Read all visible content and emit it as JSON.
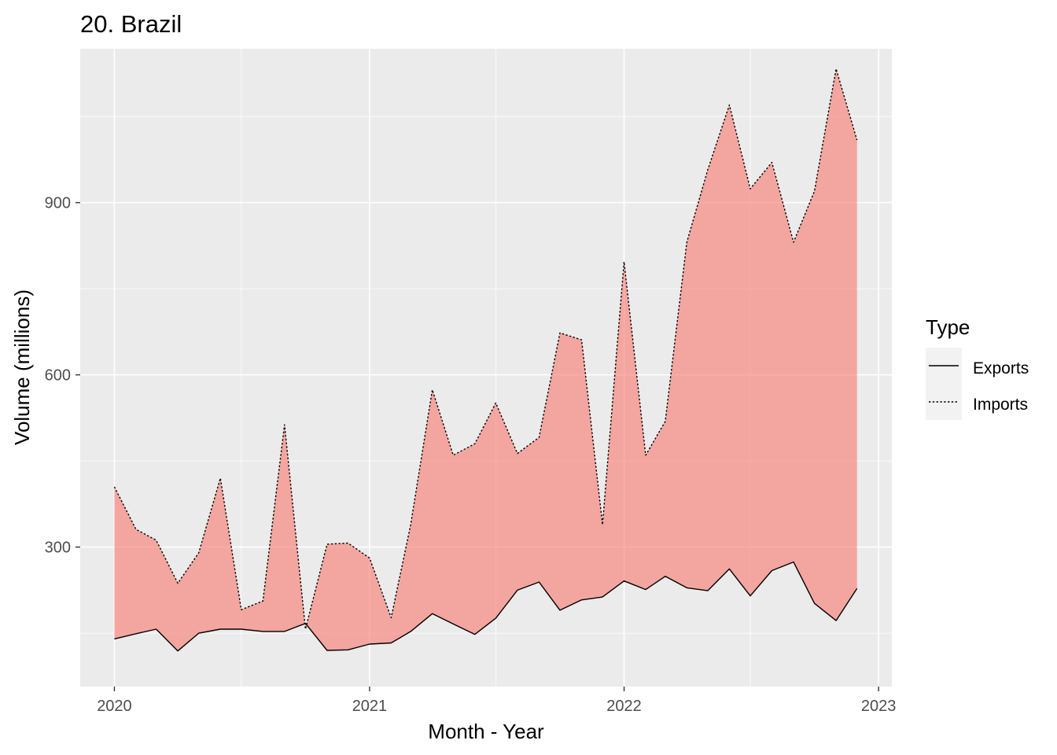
{
  "chart_data": {
    "type": "area",
    "title": "20. Brazil",
    "xlabel": "Month - Year",
    "ylabel": "Volume (millions)",
    "x_ticks": [
      "2020",
      "2021",
      "2022",
      "2023"
    ],
    "y_ticks": [
      300,
      600,
      900
    ],
    "xlim": [
      "2019-11-13",
      "2023-01-20"
    ],
    "ylim": [
      57,
      1168
    ],
    "grid": true,
    "fill_color": "#F8766D",
    "panel_background": "#EBEBEB",
    "legend": {
      "title": "Type",
      "position": "right",
      "entries": [
        {
          "name": "Exports",
          "linetype": "solid"
        },
        {
          "name": "Imports",
          "linetype": "dotted"
        }
      ]
    },
    "dates": [
      "2020-01-01",
      "2020-02-01",
      "2020-03-01",
      "2020-04-01",
      "2020-05-01",
      "2020-06-01",
      "2020-07-01",
      "2020-08-01",
      "2020-09-01",
      "2020-10-01",
      "2020-11-01",
      "2020-12-01",
      "2021-01-01",
      "2021-02-01",
      "2021-03-01",
      "2021-04-01",
      "2021-05-01",
      "2021-06-01",
      "2021-07-01",
      "2021-08-01",
      "2021-09-01",
      "2021-10-01",
      "2021-11-01",
      "2021-12-01",
      "2022-01-01",
      "2022-02-01",
      "2022-03-01",
      "2022-04-01",
      "2022-05-01",
      "2022-06-01",
      "2022-07-01",
      "2022-08-01",
      "2022-09-01",
      "2022-10-01",
      "2022-11-01",
      "2022-12-01"
    ],
    "series": [
      {
        "name": "Exports",
        "values": [
          140,
          149,
          157,
          119,
          150,
          157,
          157,
          153,
          153,
          167,
          120,
          121,
          131,
          133,
          153,
          184,
          166,
          148,
          176,
          225,
          239,
          190,
          208,
          213,
          241,
          226,
          249,
          229,
          224,
          262,
          215,
          259,
          274,
          202,
          172,
          228
        ]
      },
      {
        "name": "Imports",
        "values": [
          405,
          331,
          312,
          237,
          290,
          420,
          191,
          206,
          513,
          157,
          305,
          307,
          281,
          177,
          339,
          574,
          460,
          480,
          551,
          463,
          491,
          673,
          661,
          339,
          797,
          460,
          519,
          831,
          957,
          1070,
          924,
          970,
          831,
          920,
          1133,
          1009
        ]
      }
    ]
  }
}
